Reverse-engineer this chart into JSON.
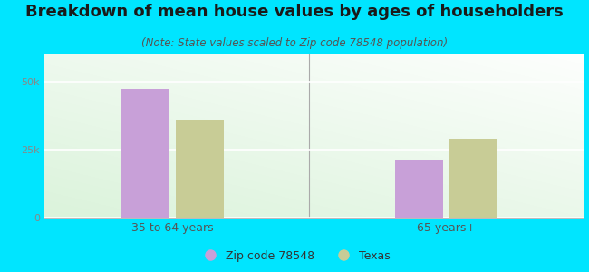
{
  "title": "Breakdown of mean house values by ages of householders",
  "subtitle": "(Note: State values scaled to Zip code 78548 population)",
  "categories": [
    "35 to 64 years",
    "65 years+"
  ],
  "zip_values": [
    47500,
    21000
  ],
  "texas_values": [
    36000,
    29000
  ],
  "zip_color": "#c8a0d8",
  "texas_color": "#c8cc96",
  "background_outer": "#00e5ff",
  "ylim": [
    0,
    60000
  ],
  "ytick_labels": [
    "0",
    "25k",
    "50k"
  ],
  "ytick_values": [
    0,
    25000,
    50000
  ],
  "legend_zip_label": "Zip code 78548",
  "legend_texas_label": "Texas",
  "title_fontsize": 13,
  "subtitle_fontsize": 8.5,
  "bar_width": 0.28,
  "title_color": "#1a1a1a",
  "subtitle_color": "#555555",
  "tick_color": "#888888",
  "xtick_color": "#555555"
}
